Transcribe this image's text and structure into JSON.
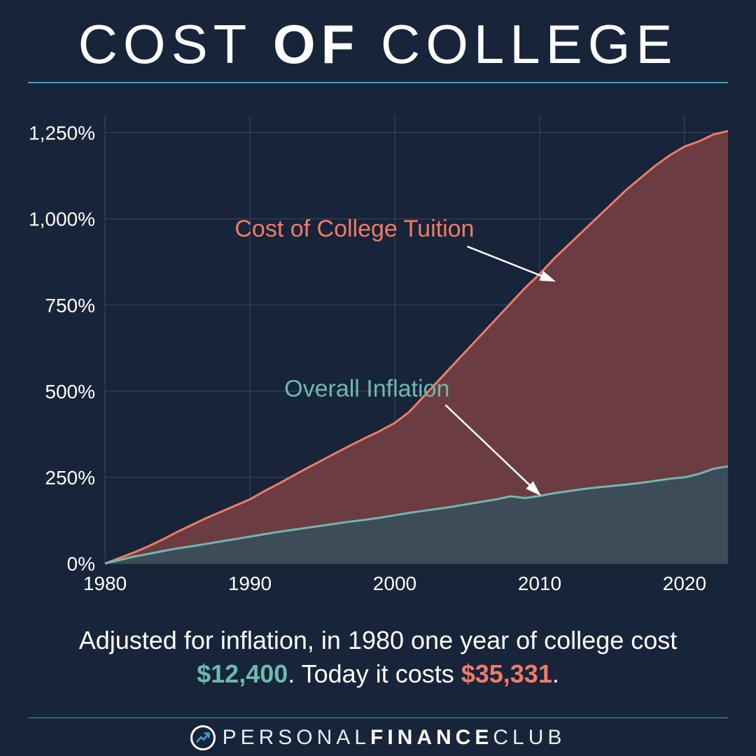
{
  "background_color": "#17243a",
  "title": {
    "parts": [
      "COST",
      "OF",
      "COLLEGE"
    ],
    "bold_index": 1,
    "fontsize": 78,
    "underline_color": "#3aa0c4",
    "text_color": "#ffffff"
  },
  "chart": {
    "type": "area",
    "plot_bg": "#17243a",
    "grid_color": "#3c4a60",
    "grid_width": 1,
    "xlim": [
      1980,
      2023
    ],
    "ylim": [
      0,
      1300
    ],
    "x_ticks": [
      1980,
      1990,
      2000,
      2010,
      2020
    ],
    "x_tick_labels": [
      "1980",
      "1990",
      "2000",
      "2010",
      "2020"
    ],
    "y_ticks": [
      0,
      250,
      500,
      750,
      1000,
      1250
    ],
    "y_tick_labels": [
      "0%",
      "250%",
      "500%",
      "750%",
      "1,000%",
      "1,250%"
    ],
    "axis_label_fontsize": 28,
    "series": {
      "tuition": {
        "label": "Cost of College Tuition",
        "label_color": "#f07b67",
        "line_color": "#f07b67",
        "fill_color": "#6b3c42",
        "fill_opacity": 1.0,
        "line_width": 3,
        "arrow_from": [
          2005,
          920
        ],
        "arrow_to": [
          2011,
          820
        ],
        "points": [
          [
            1980,
            0
          ],
          [
            1981,
            16
          ],
          [
            1982,
            32
          ],
          [
            1983,
            50
          ],
          [
            1984,
            70
          ],
          [
            1985,
            92
          ],
          [
            1986,
            112
          ],
          [
            1987,
            132
          ],
          [
            1988,
            150
          ],
          [
            1989,
            168
          ],
          [
            1990,
            186
          ],
          [
            1991,
            210
          ],
          [
            1992,
            232
          ],
          [
            1993,
            255
          ],
          [
            1994,
            278
          ],
          [
            1995,
            300
          ],
          [
            1996,
            322
          ],
          [
            1997,
            344
          ],
          [
            1998,
            365
          ],
          [
            1999,
            385
          ],
          [
            2000,
            408
          ],
          [
            2001,
            440
          ],
          [
            2002,
            485
          ],
          [
            2003,
            530
          ],
          [
            2004,
            575
          ],
          [
            2005,
            620
          ],
          [
            2006,
            665
          ],
          [
            2007,
            710
          ],
          [
            2008,
            755
          ],
          [
            2009,
            800
          ],
          [
            2010,
            840
          ],
          [
            2011,
            885
          ],
          [
            2012,
            925
          ],
          [
            2013,
            965
          ],
          [
            2014,
            1005
          ],
          [
            2015,
            1045
          ],
          [
            2016,
            1085
          ],
          [
            2017,
            1120
          ],
          [
            2018,
            1155
          ],
          [
            2019,
            1185
          ],
          [
            2020,
            1210
          ],
          [
            2021,
            1225
          ],
          [
            2022,
            1245
          ],
          [
            2023,
            1255
          ]
        ]
      },
      "inflation": {
        "label": "Overall Inflation",
        "label_color": "#6fb9ac",
        "line_color": "#6fb9ac",
        "fill_color": "#3e4b58",
        "fill_opacity": 1.0,
        "line_width": 3,
        "arrow_from": [
          2003.5,
          460
        ],
        "arrow_to": [
          2010,
          200
        ],
        "points": [
          [
            1980,
            0
          ],
          [
            1981,
            10
          ],
          [
            1982,
            20
          ],
          [
            1983,
            28
          ],
          [
            1984,
            36
          ],
          [
            1985,
            44
          ],
          [
            1986,
            50
          ],
          [
            1987,
            57
          ],
          [
            1988,
            64
          ],
          [
            1989,
            71
          ],
          [
            1990,
            78
          ],
          [
            1991,
            85
          ],
          [
            1992,
            92
          ],
          [
            1993,
            98
          ],
          [
            1994,
            104
          ],
          [
            1995,
            110
          ],
          [
            1996,
            116
          ],
          [
            1997,
            122
          ],
          [
            1998,
            127
          ],
          [
            1999,
            133
          ],
          [
            2000,
            140
          ],
          [
            2001,
            147
          ],
          [
            2002,
            153
          ],
          [
            2003,
            159
          ],
          [
            2004,
            165
          ],
          [
            2005,
            172
          ],
          [
            2006,
            179
          ],
          [
            2007,
            186
          ],
          [
            2008,
            195
          ],
          [
            2009,
            190
          ],
          [
            2010,
            196
          ],
          [
            2011,
            204
          ],
          [
            2012,
            210
          ],
          [
            2013,
            216
          ],
          [
            2014,
            221
          ],
          [
            2015,
            225
          ],
          [
            2016,
            229
          ],
          [
            2017,
            234
          ],
          [
            2018,
            240
          ],
          [
            2019,
            246
          ],
          [
            2020,
            250
          ],
          [
            2021,
            260
          ],
          [
            2022,
            275
          ],
          [
            2023,
            282
          ]
        ]
      }
    },
    "arrow_color": "#ffffff",
    "series_label_fontsize": 34
  },
  "caption": {
    "pre": "Adjusted for inflation, in 1980 one year of college cost ",
    "value_a": "$12,400",
    "mid": ". Today it costs ",
    "value_b": "$35,331",
    "post": ".",
    "color_a": "#6fb9ac",
    "color_b": "#f07b67",
    "fontsize": 36
  },
  "footer": {
    "divider_color": "#3aa0c4",
    "brand_parts": [
      "PERSONAL",
      "FINANCE",
      "CLUB"
    ],
    "bold_index": 1,
    "logo_ring": "#ffffff",
    "logo_arrow": "#3aa0c4",
    "fontsize": 30
  }
}
